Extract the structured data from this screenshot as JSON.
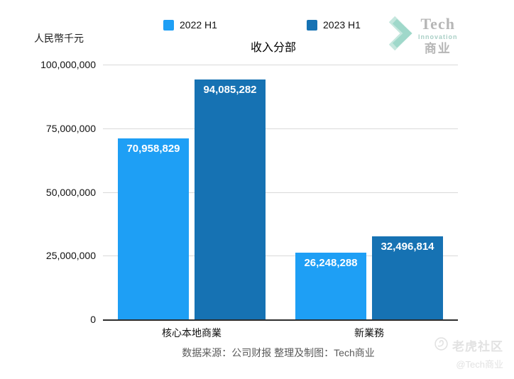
{
  "chart_data": {
    "type": "bar",
    "title": "收入分部",
    "unit_label": "人民幣千元",
    "categories": [
      "核心本地商業",
      "新業務"
    ],
    "series": [
      {
        "name": "2022 H1",
        "color": "#1e9ff5",
        "values": [
          70958829,
          26248288
        ]
      },
      {
        "name": "2023 H1",
        "color": "#1672b3",
        "values": [
          94085282,
          32496814
        ]
      }
    ],
    "data_labels": [
      [
        "70,958,829",
        "26,248,288"
      ],
      [
        "94,085,282",
        "32,496,814"
      ]
    ],
    "ylim": [
      0,
      100000000
    ],
    "yticks": [
      0,
      25000000,
      50000000,
      75000000,
      100000000
    ],
    "ytick_labels": [
      "0",
      "25,000,000",
      "50,000,000",
      "75,000,000",
      "100,000,000"
    ],
    "grid": true,
    "legend_position": "top"
  },
  "logo": {
    "word": "Tech",
    "subword": "Innovation",
    "cn": "商业"
  },
  "footer": {
    "source": "数据来源：公司财报 整理及制图：Tech商业"
  },
  "watermark": {
    "community": "老虎社区",
    "handle": "@Tech商业"
  }
}
